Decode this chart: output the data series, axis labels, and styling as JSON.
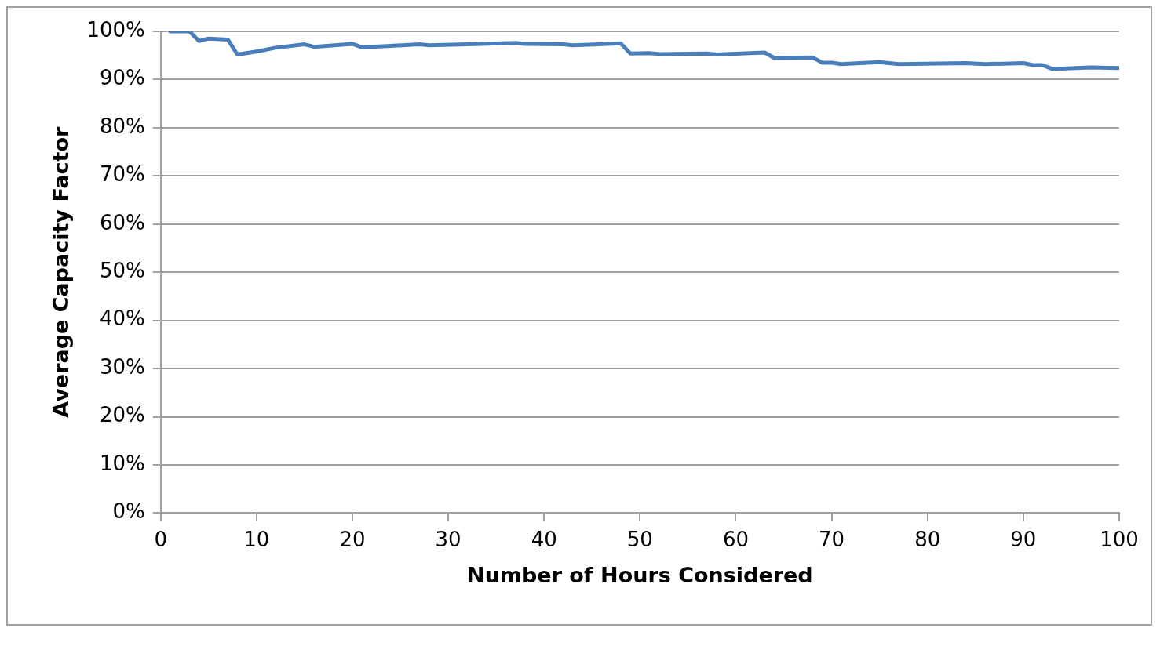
{
  "chart_data": {
    "type": "line",
    "xlabel": "Number of Hours Considered",
    "ylabel": "Average Capacity Factor",
    "x": [
      1,
      3,
      4,
      5,
      7,
      8,
      10,
      12,
      15,
      16,
      20,
      21,
      24,
      27,
      28,
      32,
      37,
      38,
      42,
      43,
      48,
      49,
      51,
      52,
      57,
      58,
      63,
      64,
      68,
      69,
      70,
      71,
      75,
      77,
      84,
      86,
      90,
      91,
      92,
      93,
      97,
      100
    ],
    "series": [
      {
        "color": "#4a7ebb",
        "values": [
          100,
          100,
          98,
          98.5,
          98.3,
          95.2,
          95.8,
          96.6,
          97.3,
          96.8,
          97.4,
          96.7,
          97,
          97.3,
          97.1,
          97.3,
          97.6,
          97.4,
          97.3,
          97.1,
          97.5,
          95.4,
          95.5,
          95.3,
          95.4,
          95.2,
          95.6,
          94.5,
          94.6,
          93.5,
          93.5,
          93.2,
          93.6,
          93.2,
          93.4,
          93.2,
          93.4,
          93,
          93,
          92.2,
          92.5,
          92.4
        ]
      }
    ],
    "xlim": [
      0,
      100
    ],
    "xticks": [
      0,
      10,
      20,
      30,
      40,
      50,
      60,
      70,
      80,
      90,
      100
    ],
    "ylim": [
      0,
      100
    ],
    "yticks": [
      {
        "value": 0,
        "label": "0%"
      },
      {
        "value": 10,
        "label": "10%"
      },
      {
        "value": 20,
        "label": "20%"
      },
      {
        "value": 30,
        "label": "30%"
      },
      {
        "value": 40,
        "label": "40%"
      },
      {
        "value": 50,
        "label": "50%"
      },
      {
        "value": 60,
        "label": "60%"
      },
      {
        "value": 70,
        "label": "70%"
      },
      {
        "value": 80,
        "label": "80%"
      },
      {
        "value": 90,
        "label": "90%"
      },
      {
        "value": 100,
        "label": "100%"
      }
    ],
    "grid": "y",
    "legend": false,
    "marker": "none",
    "line_style": "solid"
  }
}
